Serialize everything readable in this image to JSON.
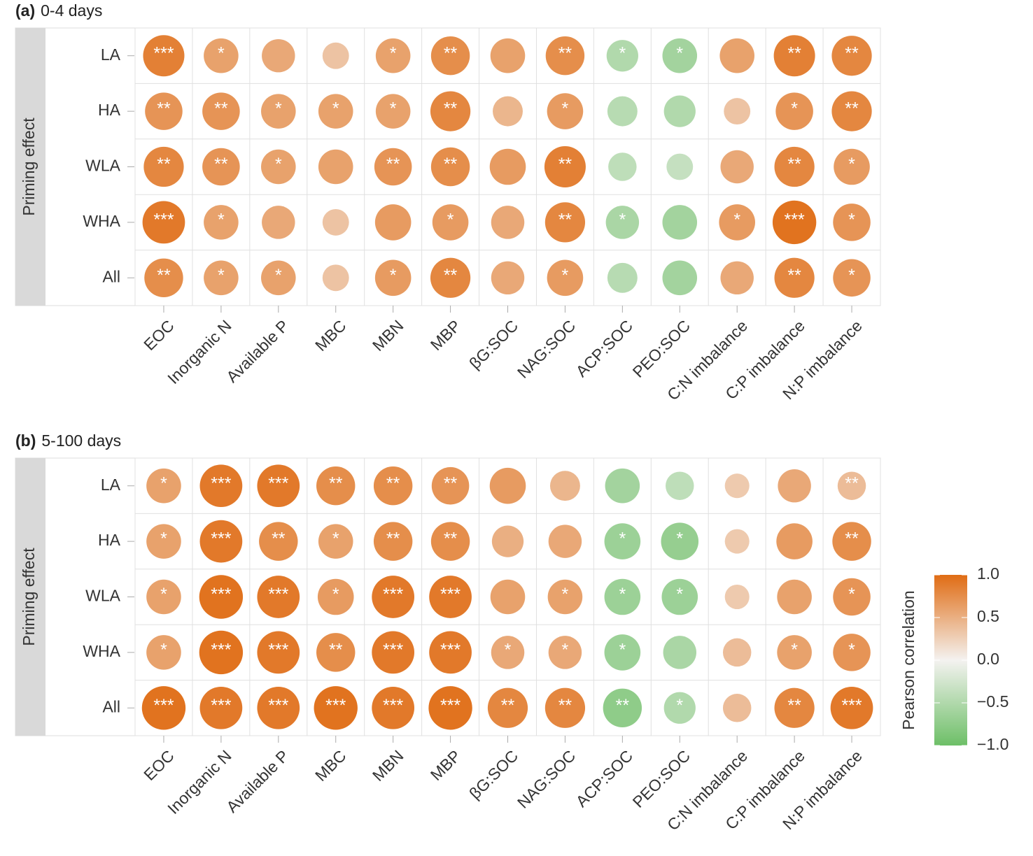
{
  "chart_data": [
    {
      "type": "heatmap",
      "panel": "(a)",
      "title": "0-4 days",
      "y_label": "Priming effect",
      "rows": [
        "LA",
        "HA",
        "WLA",
        "WHA",
        "All"
      ],
      "columns": [
        "EOC",
        "Inorganic N",
        "Available P",
        "MBC",
        "MBN",
        "MBP",
        "βG:SOC",
        "NAG:SOC",
        "ACP:SOC",
        "PEO:SOC",
        "C:N imbalance",
        "C:P imbalance",
        "N:P imbalance"
      ],
      "values": [
        [
          0.85,
          0.6,
          0.55,
          0.35,
          0.6,
          0.75,
          0.6,
          0.75,
          -0.5,
          -0.6,
          0.6,
          0.85,
          0.8
        ],
        [
          0.7,
          0.7,
          0.6,
          0.6,
          0.6,
          0.8,
          0.45,
          0.65,
          -0.45,
          -0.5,
          0.35,
          0.7,
          0.8
        ],
        [
          0.8,
          0.7,
          0.6,
          0.6,
          0.7,
          0.75,
          0.65,
          0.85,
          -0.4,
          -0.35,
          0.55,
          0.8,
          0.65
        ],
        [
          0.9,
          0.6,
          0.55,
          0.35,
          0.65,
          0.65,
          0.55,
          0.8,
          -0.55,
          -0.6,
          0.65,
          0.95,
          0.7
        ],
        [
          0.75,
          0.6,
          0.6,
          0.35,
          0.65,
          0.8,
          0.55,
          0.65,
          -0.45,
          -0.6,
          0.55,
          0.8,
          0.7
        ]
      ],
      "stars": [
        [
          "***",
          "*",
          null,
          null,
          "*",
          "**",
          null,
          "**",
          "*",
          "*",
          null,
          "**",
          "**"
        ],
        [
          "**",
          "**",
          "*",
          "*",
          "*",
          "**",
          null,
          "*",
          null,
          null,
          null,
          "*",
          "**"
        ],
        [
          "**",
          "**",
          "*",
          null,
          "**",
          "**",
          null,
          "**",
          null,
          null,
          null,
          "**",
          "*"
        ],
        [
          "***",
          "*",
          null,
          null,
          null,
          "*",
          null,
          "**",
          "*",
          null,
          "*",
          "***",
          "*"
        ],
        [
          "**",
          "*",
          "*",
          null,
          "*",
          "**",
          null,
          "*",
          null,
          null,
          null,
          "**",
          "*"
        ]
      ]
    },
    {
      "type": "heatmap",
      "panel": "(b)",
      "title": "5-100 days",
      "y_label": "Priming effect",
      "rows": [
        "LA",
        "HA",
        "WLA",
        "WHA",
        "All"
      ],
      "columns": [
        "EOC",
        "Inorganic N",
        "Available P",
        "MBC",
        "MBN",
        "MBP",
        "βG:SOC",
        "NAG:SOC",
        "ACP:SOC",
        "PEO:SOC",
        "C:N imbalance",
        "C:P imbalance",
        "N:P imbalance"
      ],
      "values": [
        [
          0.6,
          0.9,
          0.9,
          0.75,
          0.75,
          0.7,
          0.65,
          0.45,
          -0.6,
          -0.4,
          0.3,
          0.55,
          0.4
        ],
        [
          0.6,
          0.9,
          0.75,
          0.6,
          0.75,
          0.75,
          0.5,
          0.55,
          -0.65,
          -0.7,
          0.3,
          0.65,
          0.75
        ],
        [
          0.6,
          0.95,
          0.9,
          0.65,
          0.9,
          0.9,
          0.6,
          0.6,
          -0.65,
          -0.65,
          0.3,
          0.6,
          0.7
        ],
        [
          0.6,
          0.95,
          0.9,
          0.75,
          0.9,
          0.9,
          0.55,
          0.55,
          -0.65,
          -0.55,
          0.4,
          0.6,
          0.7
        ],
        [
          0.95,
          0.9,
          0.9,
          0.95,
          0.9,
          0.95,
          0.8,
          0.8,
          -0.75,
          -0.5,
          0.4,
          0.8,
          0.9
        ]
      ],
      "stars": [
        [
          "*",
          "***",
          "***",
          "**",
          "**",
          "**",
          null,
          null,
          null,
          null,
          null,
          null,
          "**"
        ],
        [
          "*",
          "***",
          "**",
          "*",
          "**",
          "**",
          null,
          null,
          "*",
          "*",
          null,
          null,
          "**"
        ],
        [
          "*",
          "***",
          "***",
          "*",
          "***",
          "***",
          null,
          "*",
          "*",
          "*",
          null,
          null,
          "*"
        ],
        [
          "*",
          "***",
          "***",
          "**",
          "***",
          "***",
          "*",
          "*",
          "*",
          null,
          null,
          "*",
          "*"
        ],
        [
          "***",
          "***",
          "***",
          "***",
          "***",
          "***",
          "**",
          "**",
          "**",
          "*",
          null,
          "**",
          "***"
        ]
      ],
      "colorbar": {
        "title": "Pearson correlation",
        "lim": [
          -1,
          1
        ],
        "ticks": [
          {
            "value": 1,
            "label": "1.0"
          },
          0.5,
          {
            "value": 0,
            "label": "0.0"
          },
          {
            "value": -0.5,
            "label": "−0.5"
          },
          {
            "value": -1,
            "label": "−1.0"
          }
        ],
        "colors": [
          "#6dbf67",
          "#f4f2f0",
          "#e06c14"
        ]
      }
    }
  ]
}
